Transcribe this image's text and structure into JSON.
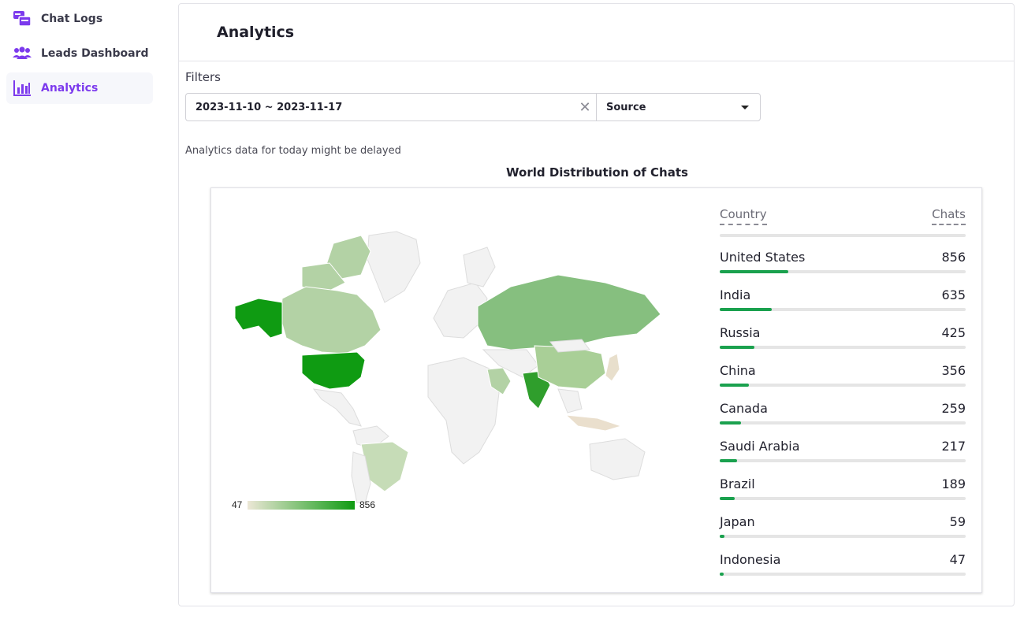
{
  "sidebar": {
    "items": [
      {
        "label": "Chat Logs",
        "icon": "chat-logs-icon",
        "active": false
      },
      {
        "label": "Leads Dashboard",
        "icon": "users-icon",
        "active": false
      },
      {
        "label": "Analytics",
        "icon": "bar-chart-icon",
        "active": true
      }
    ]
  },
  "header": {
    "title": "Analytics"
  },
  "filters": {
    "label": "Filters",
    "date_range": "2023-11-10 ~ 2023-11-17",
    "clear_glyph": "✕",
    "source": "Source"
  },
  "notice": "Analytics data for today might be delayed",
  "colors": {
    "accent": "#7c3aed",
    "bar": "#1aa14e",
    "map_max": "#0f9b12",
    "map_min": "#ece7d6"
  },
  "chart_data": {
    "type": "table",
    "title": "World Distribution of Chats",
    "legend": {
      "min": "47",
      "max": "856"
    },
    "columns": [
      "Country",
      "Chats"
    ],
    "rows": [
      {
        "country": "United States",
        "chats": 856
      },
      {
        "country": "India",
        "chats": 635
      },
      {
        "country": "Russia",
        "chats": 425
      },
      {
        "country": "China",
        "chats": 356
      },
      {
        "country": "Canada",
        "chats": 259
      },
      {
        "country": "Saudi Arabia",
        "chats": 217
      },
      {
        "country": "Brazil",
        "chats": 189
      },
      {
        "country": "Japan",
        "chats": 59
      },
      {
        "country": "Indonesia",
        "chats": 47
      }
    ],
    "bar_fill_fraction": [
      0.28,
      0.21,
      0.14,
      0.12,
      0.085,
      0.07,
      0.062,
      0.02,
      0.015
    ]
  }
}
